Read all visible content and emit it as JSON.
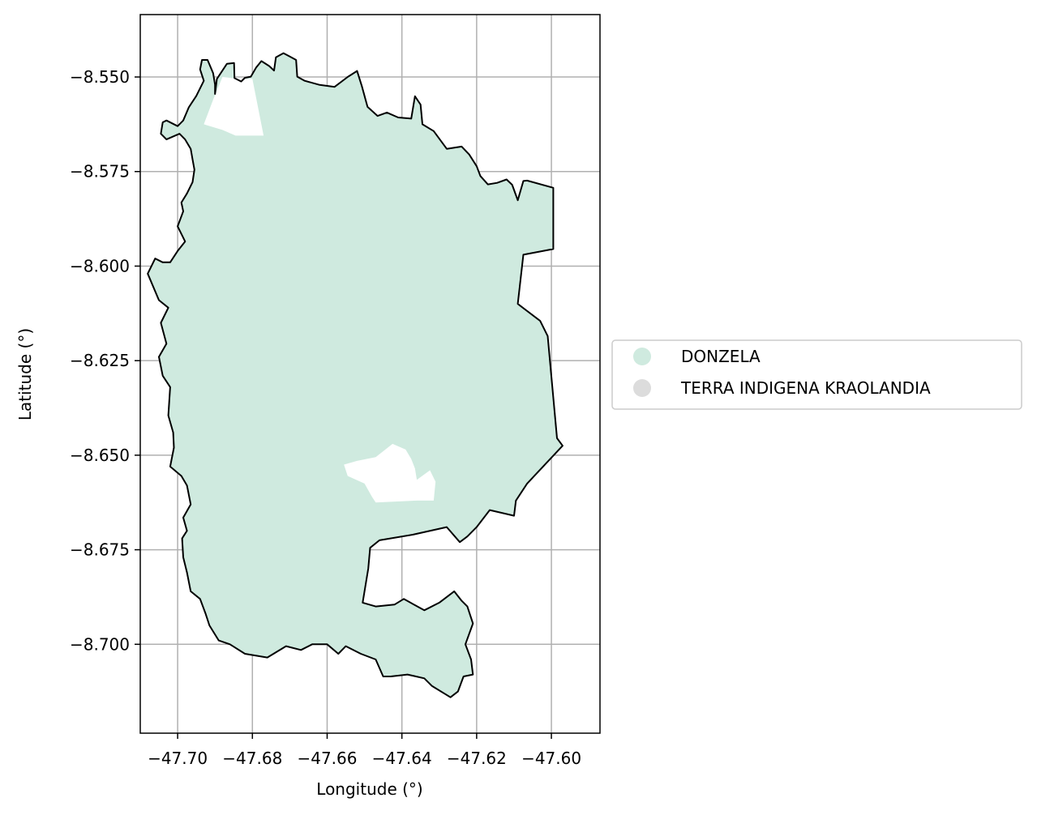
{
  "chart_data": {
    "type": "map",
    "title": "",
    "xlabel": "Longitude (°)",
    "ylabel": "Latitude (°)",
    "xlim": [
      -47.71,
      -47.587
    ],
    "ylim": [
      -8.7235,
      -8.5335
    ],
    "grid": true,
    "legend_position": "right",
    "x_ticks": [
      {
        "value": -47.7,
        "label": "−47.70"
      },
      {
        "value": -47.68,
        "label": "−47.68"
      },
      {
        "value": -47.66,
        "label": "−47.66"
      },
      {
        "value": -47.64,
        "label": "−47.64"
      },
      {
        "value": -47.62,
        "label": "−47.62"
      },
      {
        "value": -47.6,
        "label": "−47.60"
      }
    ],
    "y_ticks": [
      {
        "value": -8.55,
        "label": "−8.550"
      },
      {
        "value": -8.575,
        "label": "−8.575"
      },
      {
        "value": -8.6,
        "label": "−8.600"
      },
      {
        "value": -8.625,
        "label": "−8.625"
      },
      {
        "value": -8.65,
        "label": "−8.650"
      },
      {
        "value": -8.675,
        "label": "−8.675"
      },
      {
        "value": -8.7,
        "label": "−8.700"
      }
    ],
    "legend": [
      {
        "label": "DONZELA",
        "color": "#cfeadf"
      },
      {
        "label": "TERRA INDIGENA KRAOLANDIA",
        "color": "#dcdcdc"
      }
    ],
    "colors": {
      "grid": "#b0b0b0",
      "boundary": "#000000",
      "fill": "#cfeadf"
    },
    "outline_coords": [
      [
        -47.69,
        -8.5545
      ],
      [
        -47.6895,
        -8.5505
      ],
      [
        -47.6868,
        -8.5465
      ],
      [
        -47.6849,
        -8.5463
      ],
      [
        -47.6848,
        -8.5503
      ],
      [
        -47.683,
        -8.5512
      ],
      [
        -47.682,
        -8.5502
      ],
      [
        -47.6804,
        -8.5499
      ],
      [
        -47.679,
        -8.5475
      ],
      [
        -47.6776,
        -8.5458
      ],
      [
        -47.6755,
        -8.5471
      ],
      [
        -47.6742,
        -8.5483
      ],
      [
        -47.6737,
        -8.5448
      ],
      [
        -47.6717,
        -8.5437
      ],
      [
        -47.67,
        -8.5446
      ],
      [
        -47.6683,
        -8.5455
      ],
      [
        -47.668,
        -8.5499
      ],
      [
        -47.666,
        -8.551
      ],
      [
        -47.662,
        -8.5521
      ],
      [
        -47.658,
        -8.5526
      ],
      [
        -47.6545,
        -8.55
      ],
      [
        -47.652,
        -8.5484
      ],
      [
        -47.6507,
        -8.5525
      ],
      [
        -47.6492,
        -8.5579
      ],
      [
        -47.6465,
        -8.5603
      ],
      [
        -47.644,
        -8.5594
      ],
      [
        -47.641,
        -8.5607
      ],
      [
        -47.6375,
        -8.561
      ],
      [
        -47.6365,
        -8.5551
      ],
      [
        -47.635,
        -8.5573
      ],
      [
        -47.6345,
        -8.5625
      ],
      [
        -47.6315,
        -8.5643
      ],
      [
        -47.628,
        -8.569
      ],
      [
        -47.624,
        -8.5684
      ],
      [
        -47.622,
        -8.5705
      ],
      [
        -47.62,
        -8.5736
      ],
      [
        -47.619,
        -8.5762
      ],
      [
        -47.617,
        -8.5784
      ],
      [
        -47.6145,
        -8.578
      ],
      [
        -47.612,
        -8.5771
      ],
      [
        -47.6105,
        -8.5785
      ],
      [
        -47.609,
        -8.5826
      ],
      [
        -47.6075,
        -8.5775
      ],
      [
        -47.6065,
        -8.5774
      ],
      [
        -47.5995,
        -8.5793
      ],
      [
        -47.5995,
        -8.5955
      ],
      [
        -47.6075,
        -8.597
      ],
      [
        -47.609,
        -8.61
      ],
      [
        -47.603,
        -8.6145
      ],
      [
        -47.601,
        -8.6185
      ],
      [
        -47.5985,
        -8.6455
      ],
      [
        -47.597,
        -8.6475
      ],
      [
        -47.6065,
        -8.6575
      ],
      [
        -47.6095,
        -8.662
      ],
      [
        -47.61,
        -8.666
      ],
      [
        -47.6165,
        -8.6645
      ],
      [
        -47.62,
        -8.669
      ],
      [
        -47.6225,
        -8.6715
      ],
      [
        -47.6245,
        -8.673
      ],
      [
        -47.628,
        -8.669
      ],
      [
        -47.637,
        -8.671
      ],
      [
        -47.646,
        -8.6725
      ],
      [
        -47.6485,
        -8.6745
      ],
      [
        -47.649,
        -8.68
      ],
      [
        -47.6505,
        -8.689
      ],
      [
        -47.647,
        -8.69
      ],
      [
        -47.642,
        -8.6895
      ],
      [
        -47.6395,
        -8.688
      ],
      [
        -47.634,
        -8.691
      ],
      [
        -47.63,
        -8.689
      ],
      [
        -47.626,
        -8.686
      ],
      [
        -47.624,
        -8.6885
      ],
      [
        -47.6225,
        -8.69
      ],
      [
        -47.621,
        -8.6945
      ],
      [
        -47.623,
        -8.7
      ],
      [
        -47.6215,
        -8.704
      ],
      [
        -47.621,
        -8.708
      ],
      [
        -47.6235,
        -8.7085
      ],
      [
        -47.625,
        -8.7125
      ],
      [
        -47.627,
        -8.714
      ],
      [
        -47.632,
        -8.711
      ],
      [
        -47.634,
        -8.709
      ],
      [
        -47.6385,
        -8.708
      ],
      [
        -47.643,
        -8.7085
      ],
      [
        -47.645,
        -8.7085
      ],
      [
        -47.647,
        -8.704
      ],
      [
        -47.651,
        -8.7025
      ],
      [
        -47.655,
        -8.7005
      ],
      [
        -47.657,
        -8.7025
      ],
      [
        -47.66,
        -8.7
      ],
      [
        -47.664,
        -8.7
      ],
      [
        -47.667,
        -8.7015
      ],
      [
        -47.671,
        -8.7005
      ],
      [
        -47.676,
        -8.7035
      ],
      [
        -47.682,
        -8.7025
      ],
      [
        -47.686,
        -8.7
      ],
      [
        -47.689,
        -8.699
      ],
      [
        -47.6915,
        -8.695
      ],
      [
        -47.6925,
        -8.692
      ],
      [
        -47.694,
        -8.688
      ],
      [
        -47.6965,
        -8.686
      ],
      [
        -47.6975,
        -8.681
      ],
      [
        -47.6985,
        -8.677
      ],
      [
        -47.6988,
        -8.672
      ],
      [
        -47.6975,
        -8.67
      ],
      [
        -47.6985,
        -8.6665
      ],
      [
        -47.6965,
        -8.663
      ],
      [
        -47.6975,
        -8.658
      ],
      [
        -47.699,
        -8.6555
      ],
      [
        -47.702,
        -8.653
      ],
      [
        -47.701,
        -8.648
      ],
      [
        -47.7012,
        -8.644
      ],
      [
        -47.7025,
        -8.6395
      ],
      [
        -47.702,
        -8.632
      ],
      [
        -47.704,
        -8.629
      ],
      [
        -47.705,
        -8.624
      ],
      [
        -47.703,
        -8.6205
      ],
      [
        -47.7045,
        -8.615
      ],
      [
        -47.7025,
        -8.611
      ],
      [
        -47.705,
        -8.609
      ],
      [
        -47.708,
        -8.602
      ],
      [
        -47.706,
        -8.598
      ],
      [
        -47.704,
        -8.599
      ],
      [
        -47.702,
        -8.599
      ],
      [
        -47.7,
        -8.596
      ],
      [
        -47.698,
        -8.5935
      ],
      [
        -47.7,
        -8.5895
      ],
      [
        -47.6985,
        -8.5855
      ],
      [
        -47.699,
        -8.5832
      ],
      [
        -47.6975,
        -8.5808
      ],
      [
        -47.696,
        -8.5778
      ],
      [
        -47.6955,
        -8.5745
      ],
      [
        -47.696,
        -8.5718
      ],
      [
        -47.6965,
        -8.569
      ],
      [
        -47.698,
        -8.5665
      ],
      [
        -47.6995,
        -8.565
      ],
      [
        -47.703,
        -8.5665
      ],
      [
        -47.7045,
        -8.565
      ],
      [
        -47.704,
        -8.562
      ],
      [
        -47.703,
        -8.5615
      ],
      [
        -47.7,
        -8.563
      ],
      [
        -47.6985,
        -8.5615
      ],
      [
        -47.697,
        -8.558
      ],
      [
        -47.695,
        -8.555
      ],
      [
        -47.693,
        -8.551
      ],
      [
        -47.694,
        -8.548
      ],
      [
        -47.6935,
        -8.5455
      ],
      [
        -47.692,
        -8.5455
      ],
      [
        -47.6905,
        -8.549
      ],
      [
        -47.69,
        -8.552
      ],
      [
        -47.69,
        -8.5545
      ]
    ],
    "cutout_northwest": [
      [
        -47.688,
        -8.55
      ],
      [
        -47.6835,
        -8.5505
      ],
      [
        -47.68,
        -8.5505
      ],
      [
        -47.677,
        -8.5655
      ],
      [
        -47.6845,
        -8.5655
      ],
      [
        -47.688,
        -8.564
      ],
      [
        -47.693,
        -8.5625
      ],
      [
        -47.6905,
        -8.556
      ]
    ],
    "cutout_center": [
      [
        -47.6555,
        -8.6525
      ],
      [
        -47.652,
        -8.6515
      ],
      [
        -47.647,
        -8.6505
      ],
      [
        -47.6425,
        -8.647
      ],
      [
        -47.639,
        -8.6485
      ],
      [
        -47.6375,
        -8.651
      ],
      [
        -47.6365,
        -8.6535
      ],
      [
        -47.636,
        -8.6565
      ],
      [
        -47.6325,
        -8.654
      ],
      [
        -47.631,
        -8.657
      ],
      [
        -47.6315,
        -8.662
      ],
      [
        -47.636,
        -8.662
      ],
      [
        -47.647,
        -8.6625
      ],
      [
        -47.648,
        -8.661
      ],
      [
        -47.65,
        -8.6575
      ],
      [
        -47.6545,
        -8.6555
      ]
    ]
  }
}
